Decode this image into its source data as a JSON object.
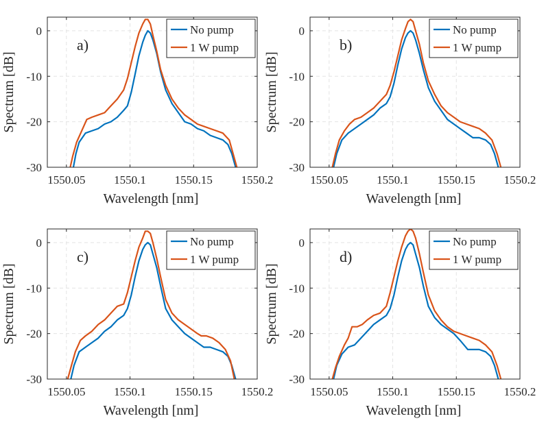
{
  "chart_data": [
    {
      "type": "line",
      "panel_label": "a)",
      "xlabel": "Wavelength [nm]",
      "ylabel": "Spectrum [dB]",
      "xlim": [
        1550.035,
        1550.2
      ],
      "ylim": [
        -30,
        3
      ],
      "xticks": [
        1550.05,
        1550.1,
        1550.15,
        1550.2
      ],
      "xtick_labels": [
        "1550.05",
        "1550.1",
        "1550.15",
        "1550.2"
      ],
      "yticks": [
        0,
        -10,
        -20,
        -30
      ],
      "ytick_labels": [
        "0",
        "-10",
        "-20",
        "-30"
      ],
      "grid": true,
      "legend": "top-right",
      "series": [
        {
          "name": "No pump",
          "color": "#0072BD",
          "x": [
            1550.0555,
            1550.0575,
            1550.06,
            1550.065,
            1550.07,
            1550.075,
            1550.08,
            1550.085,
            1550.09,
            1550.095,
            1550.098,
            1550.101,
            1550.104,
            1550.107,
            1550.11,
            1550.112,
            1550.114,
            1550.116,
            1550.118,
            1550.121,
            1550.124,
            1550.128,
            1550.133,
            1550.138,
            1550.143,
            1550.148,
            1550.153,
            1550.158,
            1550.163,
            1550.168,
            1550.173,
            1550.177,
            1550.18,
            1550.183
          ],
          "y": [
            -30,
            -27,
            -24.5,
            -22.5,
            -22,
            -21.5,
            -20.5,
            -20,
            -19,
            -17.5,
            -16.5,
            -13.5,
            -9.5,
            -5.5,
            -2.5,
            -1,
            0,
            -0.5,
            -2,
            -5,
            -9,
            -13,
            -16,
            -18,
            -20,
            -20.5,
            -21.5,
            -22,
            -23,
            -23.5,
            -24,
            -25,
            -27,
            -30
          ]
        },
        {
          "name": "1 W pump",
          "color": "#D95319",
          "x": [
            1550.053,
            1550.055,
            1550.058,
            1550.062,
            1550.066,
            1550.07,
            1550.075,
            1550.08,
            1550.085,
            1550.09,
            1550.095,
            1550.098,
            1550.101,
            1550.104,
            1550.107,
            1550.11,
            1550.112,
            1550.114,
            1550.116,
            1550.118,
            1550.121,
            1550.124,
            1550.128,
            1550.133,
            1550.138,
            1550.143,
            1550.148,
            1550.153,
            1550.158,
            1550.163,
            1550.168,
            1550.173,
            1550.178,
            1550.181,
            1550.184
          ],
          "y": [
            -30,
            -27.5,
            -24.5,
            -22,
            -19.5,
            -19,
            -18.5,
            -18,
            -16.5,
            -15,
            -13,
            -10.5,
            -7,
            -3.5,
            -0.5,
            1.5,
            2.5,
            2.5,
            1.5,
            -1,
            -4.5,
            -8.5,
            -12,
            -15,
            -17,
            -18.5,
            -19.5,
            -20.5,
            -21,
            -21.5,
            -22,
            -22.5,
            -24,
            -27,
            -30
          ]
        }
      ]
    },
    {
      "type": "line",
      "panel_label": "b)",
      "xlabel": "Wavelength [nm]",
      "ylabel": "Spectrum [dB]",
      "xlim": [
        1550.035,
        1550.2
      ],
      "ylim": [
        -30,
        3
      ],
      "xticks": [
        1550.05,
        1550.1,
        1550.15,
        1550.2
      ],
      "xtick_labels": [
        "1550.05",
        "1550.1",
        "1550.15",
        "1550.2"
      ],
      "yticks": [
        0,
        -10,
        -20,
        -30
      ],
      "ytick_labels": [
        "0",
        "-10",
        "-20",
        "-30"
      ],
      "grid": true,
      "legend": "top-right",
      "series": [
        {
          "name": "No pump",
          "color": "#0072BD",
          "x": [
            1550.0535,
            1550.056,
            1550.06,
            1550.065,
            1550.07,
            1550.075,
            1550.08,
            1550.085,
            1550.09,
            1550.095,
            1550.098,
            1550.101,
            1550.104,
            1550.107,
            1550.11,
            1550.112,
            1550.114,
            1550.116,
            1550.118,
            1550.121,
            1550.124,
            1550.128,
            1550.133,
            1550.138,
            1550.143,
            1550.148,
            1550.153,
            1550.158,
            1550.163,
            1550.168,
            1550.173,
            1550.177,
            1550.18,
            1550.183
          ],
          "y": [
            -30,
            -27,
            -24,
            -22.5,
            -21.5,
            -20.5,
            -19.5,
            -18.5,
            -17,
            -16,
            -14.5,
            -11.5,
            -7.5,
            -4,
            -1.5,
            -0.5,
            0,
            -0.5,
            -2,
            -5,
            -8.5,
            -12.5,
            -15.5,
            -17.5,
            -19.5,
            -20.5,
            -21.5,
            -22.5,
            -23.5,
            -23.5,
            -24,
            -25,
            -27,
            -30
          ]
        },
        {
          "name": "1 W pump",
          "color": "#D95319",
          "x": [
            1550.0525,
            1550.055,
            1550.058,
            1550.062,
            1550.066,
            1550.07,
            1550.075,
            1550.08,
            1550.085,
            1550.09,
            1550.095,
            1550.098,
            1550.101,
            1550.104,
            1550.107,
            1550.11,
            1550.112,
            1550.114,
            1550.116,
            1550.118,
            1550.121,
            1550.124,
            1550.128,
            1550.133,
            1550.138,
            1550.143,
            1550.148,
            1550.153,
            1550.158,
            1550.163,
            1550.168,
            1550.173,
            1550.178,
            1550.182,
            1550.185
          ],
          "y": [
            -30,
            -27,
            -24,
            -22,
            -20.5,
            -19.5,
            -19,
            -18,
            -17,
            -15.5,
            -14,
            -12,
            -9,
            -5.5,
            -2,
            0.5,
            2,
            2.5,
            2,
            0,
            -3,
            -7,
            -11,
            -14,
            -16.5,
            -18,
            -19,
            -20,
            -20.5,
            -21,
            -21.5,
            -22.5,
            -24,
            -27,
            -30
          ]
        }
      ]
    },
    {
      "type": "line",
      "panel_label": "c)",
      "xlabel": "Wavelength [nm]",
      "ylabel": "Spectrum [dB]",
      "xlim": [
        1550.035,
        1550.2
      ],
      "ylim": [
        -30,
        3
      ],
      "xticks": [
        1550.05,
        1550.1,
        1550.15,
        1550.2
      ],
      "xtick_labels": [
        "1550.05",
        "1550.1",
        "1550.15",
        "1550.2"
      ],
      "yticks": [
        0,
        -10,
        -20,
        -30
      ],
      "ytick_labels": [
        "0",
        "-10",
        "-20",
        "-30"
      ],
      "grid": true,
      "legend": "top-right",
      "series": [
        {
          "name": "No pump",
          "color": "#0072BD",
          "x": [
            1550.0535,
            1550.056,
            1550.06,
            1550.065,
            1550.07,
            1550.075,
            1550.08,
            1550.085,
            1550.09,
            1550.095,
            1550.098,
            1550.101,
            1550.104,
            1550.107,
            1550.11,
            1550.112,
            1550.114,
            1550.116,
            1550.118,
            1550.121,
            1550.124,
            1550.128,
            1550.133,
            1550.138,
            1550.143,
            1550.148,
            1550.153,
            1550.158,
            1550.163,
            1550.168,
            1550.173,
            1550.177,
            1550.18,
            1550.183
          ],
          "y": [
            -30,
            -27,
            -24,
            -23,
            -22,
            -21,
            -19.5,
            -18.5,
            -17,
            -16,
            -14.5,
            -11.5,
            -7.5,
            -4,
            -1.5,
            -0.5,
            0,
            -0.5,
            -2.5,
            -5.5,
            -9.5,
            -14.5,
            -17,
            -18.5,
            -20,
            -21,
            -22,
            -23,
            -23,
            -23.5,
            -24,
            -25,
            -27,
            -30
          ]
        },
        {
          "name": "1 W pump",
          "color": "#D95319",
          "x": [
            1550.051,
            1550.054,
            1550.057,
            1550.061,
            1550.065,
            1550.07,
            1550.075,
            1550.08,
            1550.085,
            1550.09,
            1550.095,
            1550.098,
            1550.101,
            1550.104,
            1550.107,
            1550.11,
            1550.112,
            1550.114,
            1550.116,
            1550.118,
            1550.121,
            1550.124,
            1550.128,
            1550.133,
            1550.138,
            1550.143,
            1550.148,
            1550.153,
            1550.156,
            1550.16,
            1550.165,
            1550.17,
            1550.175,
            1550.179,
            1550.182
          ],
          "y": [
            -30,
            -27,
            -24,
            -21.5,
            -20.5,
            -19.5,
            -18,
            -17,
            -15.5,
            -14,
            -13.5,
            -11,
            -7.5,
            -4,
            -1,
            1,
            2.5,
            2.5,
            2,
            0,
            -3.5,
            -7.5,
            -12.5,
            -15.5,
            -17,
            -18,
            -19,
            -20,
            -20.5,
            -20.5,
            -21,
            -22,
            -23.5,
            -26,
            -30
          ]
        }
      ]
    },
    {
      "type": "line",
      "panel_label": "d)",
      "xlabel": "Wavelength [nm]",
      "ylabel": "Spectrum [dB]",
      "xlim": [
        1550.035,
        1550.2
      ],
      "ylim": [
        -30,
        3
      ],
      "xticks": [
        1550.05,
        1550.1,
        1550.15,
        1550.2
      ],
      "xtick_labels": [
        "1550.05",
        "1550.1",
        "1550.15",
        "1550.2"
      ],
      "yticks": [
        0,
        -10,
        -20,
        -30
      ],
      "ytick_labels": [
        "0",
        "-10",
        "-20",
        "-30"
      ],
      "grid": true,
      "legend": "top-right",
      "series": [
        {
          "name": "No pump",
          "color": "#0072BD",
          "x": [
            1550.0535,
            1550.056,
            1550.06,
            1550.065,
            1550.07,
            1550.075,
            1550.08,
            1550.085,
            1550.09,
            1550.095,
            1550.098,
            1550.101,
            1550.104,
            1550.107,
            1550.11,
            1550.112,
            1550.114,
            1550.116,
            1550.118,
            1550.121,
            1550.124,
            1550.128,
            1550.133,
            1550.138,
            1550.143,
            1550.148,
            1550.153,
            1550.156,
            1550.159,
            1550.163,
            1550.168,
            1550.173,
            1550.177,
            1550.18,
            1550.183
          ],
          "y": [
            -30,
            -27,
            -24.5,
            -23,
            -22.5,
            -21,
            -19.5,
            -18,
            -17,
            -16,
            -14.5,
            -11.5,
            -7.5,
            -4,
            -1.5,
            -0.5,
            0,
            -0.5,
            -2.5,
            -5.5,
            -9.5,
            -14,
            -16.5,
            -18,
            -19,
            -20,
            -21.5,
            -22.5,
            -23.5,
            -23.5,
            -23.5,
            -24,
            -25,
            -27,
            -30
          ]
        },
        {
          "name": "1 W pump",
          "color": "#D95319",
          "x": [
            1550.0525,
            1550.055,
            1550.058,
            1550.062,
            1550.065,
            1550.068,
            1550.072,
            1550.076,
            1550.08,
            1550.085,
            1550.09,
            1550.095,
            1550.098,
            1550.101,
            1550.104,
            1550.107,
            1550.11,
            1550.112,
            1550.114,
            1550.116,
            1550.118,
            1550.121,
            1550.124,
            1550.128,
            1550.133,
            1550.138,
            1550.143,
            1550.148,
            1550.153,
            1550.158,
            1550.163,
            1550.168,
            1550.173,
            1550.178,
            1550.182,
            1550.185
          ],
          "y": [
            -30,
            -27.5,
            -25,
            -22.5,
            -21,
            -18.5,
            -18.5,
            -18,
            -17,
            -16,
            -15.5,
            -14,
            -11,
            -7.5,
            -4,
            -1,
            1.5,
            2.5,
            3,
            2.5,
            1,
            -2.5,
            -6.5,
            -11.5,
            -15,
            -17,
            -18.5,
            -19.5,
            -20,
            -20.5,
            -21,
            -21.5,
            -22.5,
            -24,
            -27,
            -30
          ]
        }
      ]
    }
  ]
}
